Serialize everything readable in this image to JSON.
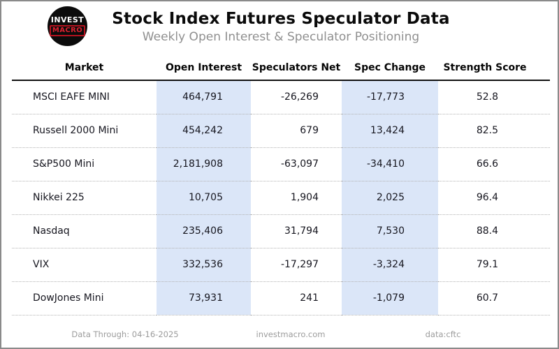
{
  "header": {
    "title": "Stock Index Futures Speculator Data",
    "subtitle": "Weekly Open Interest & Speculator Positioning",
    "logo": {
      "line1": "INVEST",
      "line2": "MACRO"
    }
  },
  "table": {
    "columns": [
      "Market",
      "Open Interest",
      "Speculators Net",
      "Spec Change",
      "Strength Score"
    ],
    "rows": [
      {
        "market": "MSCI EAFE MINI",
        "open_interest": "464,791",
        "speculators_net": "-26,269",
        "spec_change": "-17,773",
        "strength_score": "52.8"
      },
      {
        "market": "Russell 2000 Mini",
        "open_interest": "454,242",
        "speculators_net": "679",
        "spec_change": "13,424",
        "strength_score": "82.5"
      },
      {
        "market": "S&P500 Mini",
        "open_interest": "2,181,908",
        "speculators_net": "-63,097",
        "spec_change": "-34,410",
        "strength_score": "66.6"
      },
      {
        "market": "Nikkei 225",
        "open_interest": "10,705",
        "speculators_net": "1,904",
        "spec_change": "2,025",
        "strength_score": "96.4"
      },
      {
        "market": "Nasdaq",
        "open_interest": "235,406",
        "speculators_net": "31,794",
        "spec_change": "7,530",
        "strength_score": "88.4"
      },
      {
        "market": "VIX",
        "open_interest": "332,536",
        "speculators_net": "-17,297",
        "spec_change": "-3,324",
        "strength_score": "79.1"
      },
      {
        "market": "DowJones Mini",
        "open_interest": "73,931",
        "speculators_net": "241",
        "spec_change": "-1,079",
        "strength_score": "60.7"
      }
    ]
  },
  "footer": {
    "data_through": "Data Through: 04-16-2025",
    "website": "investmacro.com",
    "source": "data:cftc"
  },
  "colors": {
    "highlight_column": "#dbe6f8",
    "logo_red": "#d8212f",
    "subtitle_gray": "#8f8f8f",
    "footer_gray": "#9c9c9c"
  },
  "chart_data": {
    "type": "table",
    "title": "Stock Index Futures Speculator Data",
    "subtitle": "Weekly Open Interest & Speculator Positioning",
    "columns": [
      "Market",
      "Open Interest",
      "Speculators Net",
      "Spec Change",
      "Strength Score"
    ],
    "rows": [
      [
        "MSCI EAFE MINI",
        464791,
        -26269,
        -17773,
        52.8
      ],
      [
        "Russell 2000 Mini",
        454242,
        679,
        13424,
        82.5
      ],
      [
        "S&P500 Mini",
        2181908,
        -63097,
        -34410,
        66.6
      ],
      [
        "Nikkei 225",
        10705,
        1904,
        2025,
        96.4
      ],
      [
        "Nasdaq",
        235406,
        31794,
        7530,
        88.4
      ],
      [
        "VIX",
        332536,
        -17297,
        -3324,
        79.1
      ],
      [
        "DowJones Mini",
        73931,
        241,
        -1079,
        60.7
      ]
    ],
    "highlighted_columns": [
      "Open Interest",
      "Spec Change"
    ],
    "data_through": "04-16-2025",
    "source": "cftc"
  }
}
